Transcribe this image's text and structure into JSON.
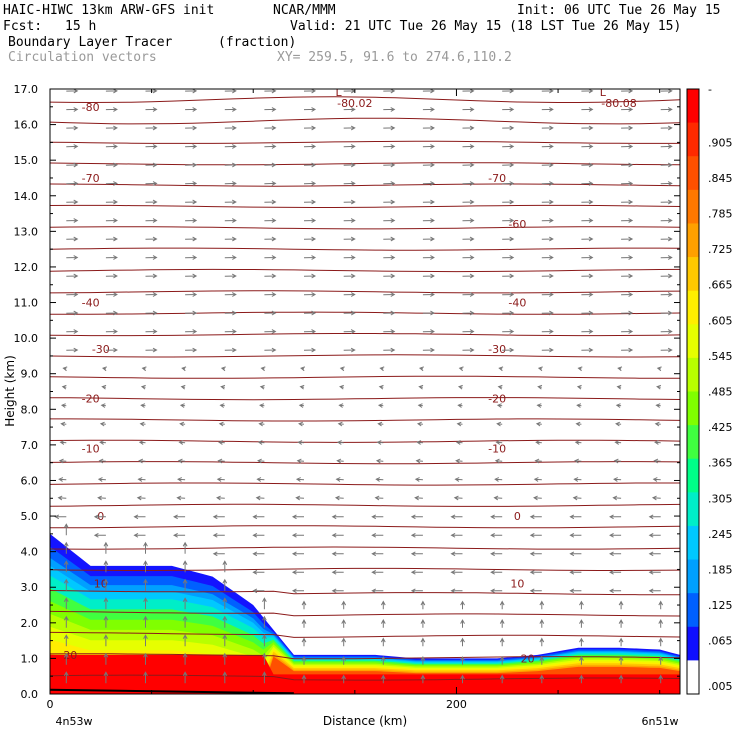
{
  "header": {
    "model": "HAIC-HIWC 13km ARW-GFS init",
    "org": "NCAR/MMM",
    "init": "Init: 06 UTC Tue 26 May 15",
    "fcst_label": "Fcst:",
    "fcst_value": "15 h",
    "valid": "Valid: 21 UTC Tue 26 May 15 (18 LST Tue 26 May 15)",
    "field": "Boundary Layer Tracer",
    "field_units": "(fraction)",
    "vectors": "Circulation vectors",
    "xy": "XY= 259.5, 91.6 to 274.6,110.2"
  },
  "chart_data": {
    "type": "heatmap",
    "xlabel": "Distance (km)",
    "ylabel": "Height (km)",
    "xlim": [
      0,
      310
    ],
    "ylim": [
      0,
      17
    ],
    "x_ticks": [
      0,
      200
    ],
    "x_tick_labels": [
      "0",
      "200"
    ],
    "x_endpoints": [
      "4n53w",
      "6n51w"
    ],
    "y_ticks": [
      "0.0",
      "1.0",
      "2.0",
      "3.0",
      "4.0",
      "5.0",
      "6.0",
      "7.0",
      "8.0",
      "9.0",
      "10.0",
      "11.0",
      "12.0",
      "13.0",
      "14.0",
      "15.0",
      "16.0",
      "17.0"
    ],
    "colorbar": {
      "labels": [
        "-",
        ".905",
        ".845",
        ".785",
        ".725",
        ".665",
        ".605",
        ".545",
        ".485",
        ".425",
        ".365",
        ".305",
        ".245",
        ".185",
        ".125",
        ".065",
        ".005"
      ],
      "colors": [
        "#ff0000",
        "#ff2a00",
        "#ff5000",
        "#ff7800",
        "#ffa000",
        "#ffc800",
        "#ffee00",
        "#e6ff00",
        "#b8ff00",
        "#80ff00",
        "#40ff40",
        "#00ff88",
        "#00eec8",
        "#00c8ff",
        "#00a0ff",
        "#0060ff",
        "#1010ff",
        "#ffffff"
      ]
    },
    "tracer_profile": {
      "x": [
        0,
        20,
        40,
        60,
        80,
        100,
        120,
        140,
        160,
        180,
        200,
        220,
        240,
        260,
        280,
        300,
        310
      ],
      "top_height": [
        4.5,
        3.6,
        3.6,
        3.6,
        3.3,
        2.5,
        1.1,
        1.1,
        1.1,
        1.0,
        1.0,
        1.0,
        1.1,
        1.3,
        1.3,
        1.25,
        1.1
      ]
    },
    "temperature_contours": [
      {
        "label": "-80",
        "x": 20,
        "y": 16.5
      },
      {
        "label": "-80.02",
        "x": 150,
        "y": 16.6
      },
      {
        "label": "-80.08",
        "x": 280,
        "y": 16.6
      },
      {
        "label": "-70",
        "x": 20,
        "y": 14.5
      },
      {
        "label": "-70",
        "x": 220,
        "y": 14.5
      },
      {
        "label": "-60",
        "x": 230,
        "y": 13.2
      },
      {
        "label": "-40",
        "x": 20,
        "y": 11.0
      },
      {
        "label": "-40",
        "x": 230,
        "y": 11.0
      },
      {
        "label": "-30",
        "x": 25,
        "y": 9.7
      },
      {
        "label": "-30",
        "x": 220,
        "y": 9.7
      },
      {
        "label": "-20",
        "x": 20,
        "y": 8.3
      },
      {
        "label": "-20",
        "x": 220,
        "y": 8.3
      },
      {
        "label": "-10",
        "x": 20,
        "y": 6.9
      },
      {
        "label": "-10",
        "x": 220,
        "y": 6.9
      },
      {
        "label": "0",
        "x": 25,
        "y": 5.0
      },
      {
        "label": "0",
        "x": 230,
        "y": 5.0
      },
      {
        "label": "10",
        "x": 25,
        "y": 3.1
      },
      {
        "label": "10",
        "x": 230,
        "y": 3.1
      },
      {
        "label": "20",
        "x": 10,
        "y": 1.1
      },
      {
        "label": "20",
        "x": 235,
        "y": 1.0
      }
    ],
    "low_markers": [
      {
        "label": "L",
        "x": 142,
        "y": 16.8
      },
      {
        "label": "L",
        "x": 272,
        "y": 16.8
      }
    ]
  }
}
